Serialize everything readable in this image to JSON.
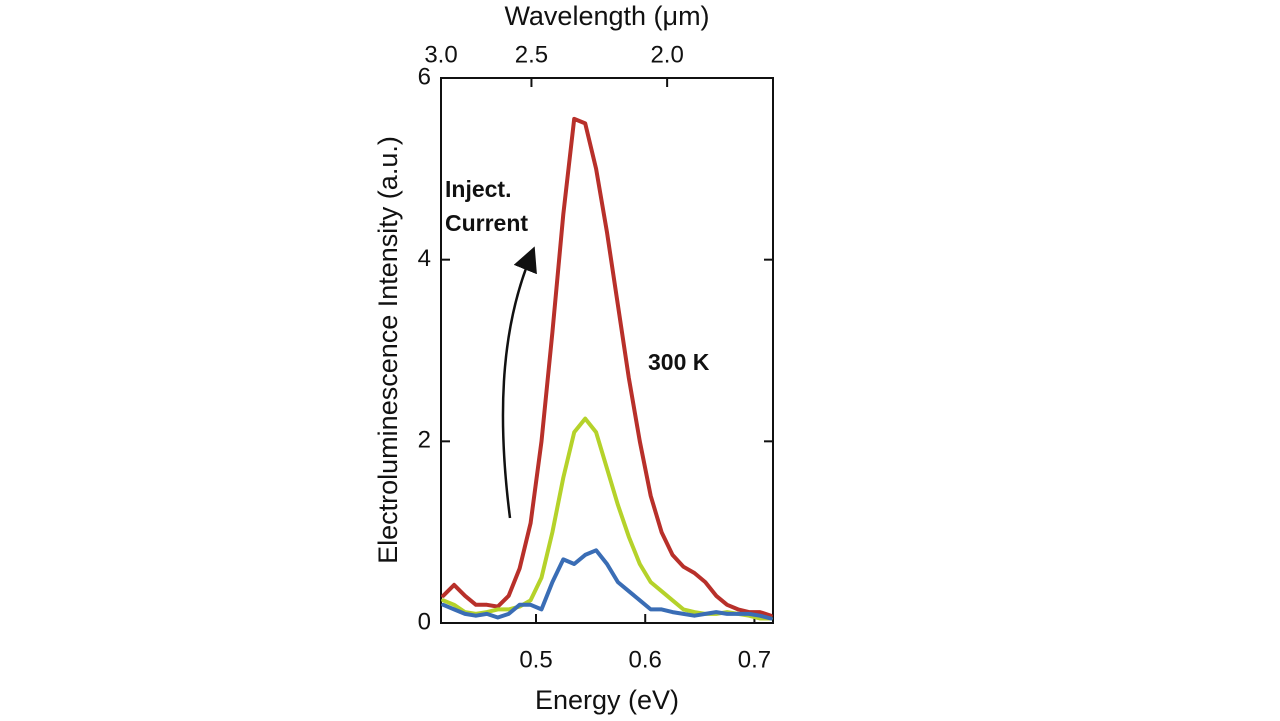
{
  "chart_data": {
    "type": "line",
    "xlabel": "Energy (eV)",
    "ylabel": "Electroluminescence Intensity (a.u.)",
    "x2label": "Wavelength (μm)",
    "annotations": [
      "Inject.",
      "Current",
      "300 K"
    ],
    "x": [
      0.415,
      0.425,
      0.435,
      0.445,
      0.455,
      0.465,
      0.475,
      0.485,
      0.495,
      0.505,
      0.515,
      0.525,
      0.535,
      0.545,
      0.555,
      0.565,
      0.575,
      0.585,
      0.595,
      0.605,
      0.615,
      0.625,
      0.635,
      0.645,
      0.655,
      0.665,
      0.675,
      0.685,
      0.695,
      0.705,
      0.715
    ],
    "series": [
      {
        "color": "#b8302a",
        "values": [
          0.3,
          0.42,
          0.3,
          0.2,
          0.2,
          0.18,
          0.3,
          0.6,
          1.1,
          2.0,
          3.2,
          4.5,
          5.55,
          5.5,
          5.0,
          4.3,
          3.5,
          2.7,
          2.0,
          1.4,
          1.0,
          0.75,
          0.62,
          0.55,
          0.45,
          0.3,
          0.2,
          0.15,
          0.12,
          0.12,
          0.08
        ]
      },
      {
        "color": "#b5d22a",
        "values": [
          0.25,
          0.2,
          0.12,
          0.1,
          0.12,
          0.15,
          0.15,
          0.18,
          0.25,
          0.5,
          1.0,
          1.6,
          2.1,
          2.25,
          2.1,
          1.7,
          1.3,
          0.95,
          0.65,
          0.45,
          0.35,
          0.25,
          0.15,
          0.12,
          0.1,
          0.1,
          0.12,
          0.1,
          0.08,
          0.05,
          0.05
        ]
      },
      {
        "color": "#3a6db5",
        "values": [
          0.2,
          0.15,
          0.1,
          0.08,
          0.1,
          0.06,
          0.1,
          0.2,
          0.2,
          0.15,
          0.45,
          0.7,
          0.65,
          0.75,
          0.8,
          0.65,
          0.45,
          0.35,
          0.25,
          0.15,
          0.15,
          0.12,
          0.1,
          0.08,
          0.1,
          0.12,
          0.1,
          0.1,
          0.1,
          0.08,
          0.05
        ]
      }
    ],
    "xlim": [
      0.413,
      0.717
    ],
    "xticks": [
      0.5,
      0.6,
      0.7
    ],
    "ylim": [
      0,
      6
    ],
    "yticks": [
      0,
      2,
      4,
      6
    ],
    "x2lim": [
      3.0,
      1.73
    ],
    "x2scale": "reciprocal",
    "x2ticks": [
      {
        "value": 3,
        "label": "3.0"
      },
      2.5,
      {
        "value": 2,
        "label": "2.0"
      }
    ],
    "grid": false
  }
}
